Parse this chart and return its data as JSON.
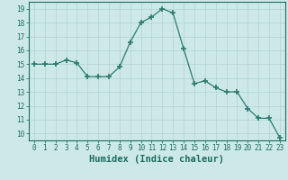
{
  "x": [
    0,
    1,
    2,
    3,
    4,
    5,
    6,
    7,
    8,
    9,
    10,
    11,
    12,
    13,
    14,
    15,
    16,
    17,
    18,
    19,
    20,
    21,
    22,
    23
  ],
  "y": [
    15.0,
    15.0,
    15.0,
    15.3,
    15.1,
    14.1,
    14.1,
    14.1,
    14.8,
    16.6,
    18.0,
    18.4,
    19.0,
    18.7,
    16.1,
    13.6,
    13.8,
    13.3,
    13.0,
    13.0,
    11.8,
    11.1,
    11.1,
    9.7
  ],
  "line_color": "#2d7a6e",
  "marker": "+",
  "marker_size": 4,
  "marker_lw": 1.2,
  "bg_color": "#cce9e7",
  "grid_color": "#b0d4d0",
  "xlabel": "Humidex (Indice chaleur)",
  "xlim": [
    -0.5,
    23.5
  ],
  "ylim": [
    9.5,
    19.5
  ],
  "yticks": [
    10,
    11,
    12,
    13,
    14,
    15,
    16,
    17,
    18,
    19
  ],
  "xticks": [
    0,
    1,
    2,
    3,
    4,
    5,
    6,
    7,
    8,
    9,
    10,
    11,
    12,
    13,
    14,
    15,
    16,
    17,
    18,
    19,
    20,
    21,
    22,
    23
  ],
  "axis_color": "#1e6b5e",
  "tick_fontsize": 5.5,
  "xlabel_fontsize": 7.5
}
